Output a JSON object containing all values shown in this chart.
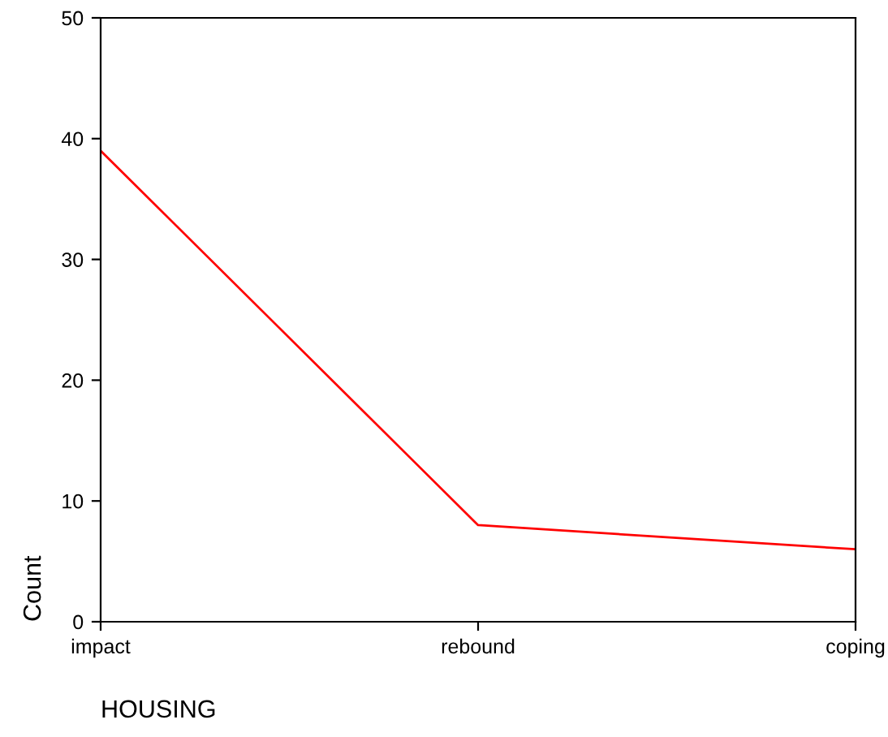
{
  "chart_data": {
    "type": "line",
    "categories": [
      "impact",
      "rebound",
      "coping"
    ],
    "series": [
      {
        "color": "#ff0000",
        "values": [
          39,
          8,
          6
        ]
      }
    ],
    "xlabel": "HOUSING",
    "ylabel": "Count",
    "ylim": [
      0,
      50
    ],
    "yticks": [
      0,
      10,
      20,
      30,
      40,
      50
    ],
    "marker": "none",
    "line_style": "solid"
  }
}
